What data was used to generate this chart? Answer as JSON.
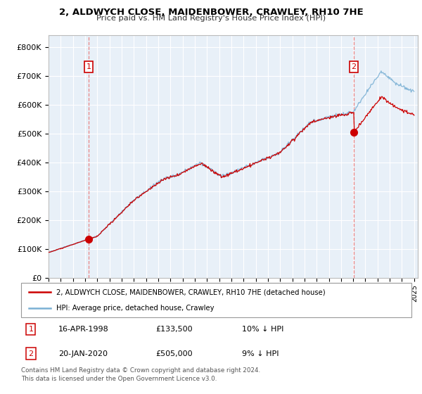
{
  "title": "2, ALDWYCH CLOSE, MAIDENBOWER, CRAWLEY, RH10 7HE",
  "subtitle": "Price paid vs. HM Land Registry's House Price Index (HPI)",
  "xlim_start": 1995.0,
  "xlim_end": 2025.3,
  "ylim": [
    0,
    840000
  ],
  "yticks": [
    0,
    100000,
    200000,
    300000,
    400000,
    500000,
    600000,
    700000,
    800000
  ],
  "ytick_labels": [
    "£0",
    "£100K",
    "£200K",
    "£300K",
    "£400K",
    "£500K",
    "£600K",
    "£700K",
    "£800K"
  ],
  "sale1_date": 1998.29,
  "sale1_price": 133500,
  "sale2_date": 2020.05,
  "sale2_price": 505000,
  "legend_line1": "2, ALDWYCH CLOSE, MAIDENBOWER, CRAWLEY, RH10 7HE (detached house)",
  "legend_line2": "HPI: Average price, detached house, Crawley",
  "table_row1": [
    "1",
    "16-APR-1998",
    "£133,500",
    "10% ↓ HPI"
  ],
  "table_row2": [
    "2",
    "20-JAN-2020",
    "£505,000",
    "9% ↓ HPI"
  ],
  "footer": "Contains HM Land Registry data © Crown copyright and database right 2024.\nThis data is licensed under the Open Government Licence v3.0.",
  "sale_color": "#cc0000",
  "hpi_color": "#7ab0d4",
  "vline_color": "#e87878",
  "bg_chart": "#e8f0f8",
  "background_color": "#ffffff",
  "grid_color": "#ffffff"
}
